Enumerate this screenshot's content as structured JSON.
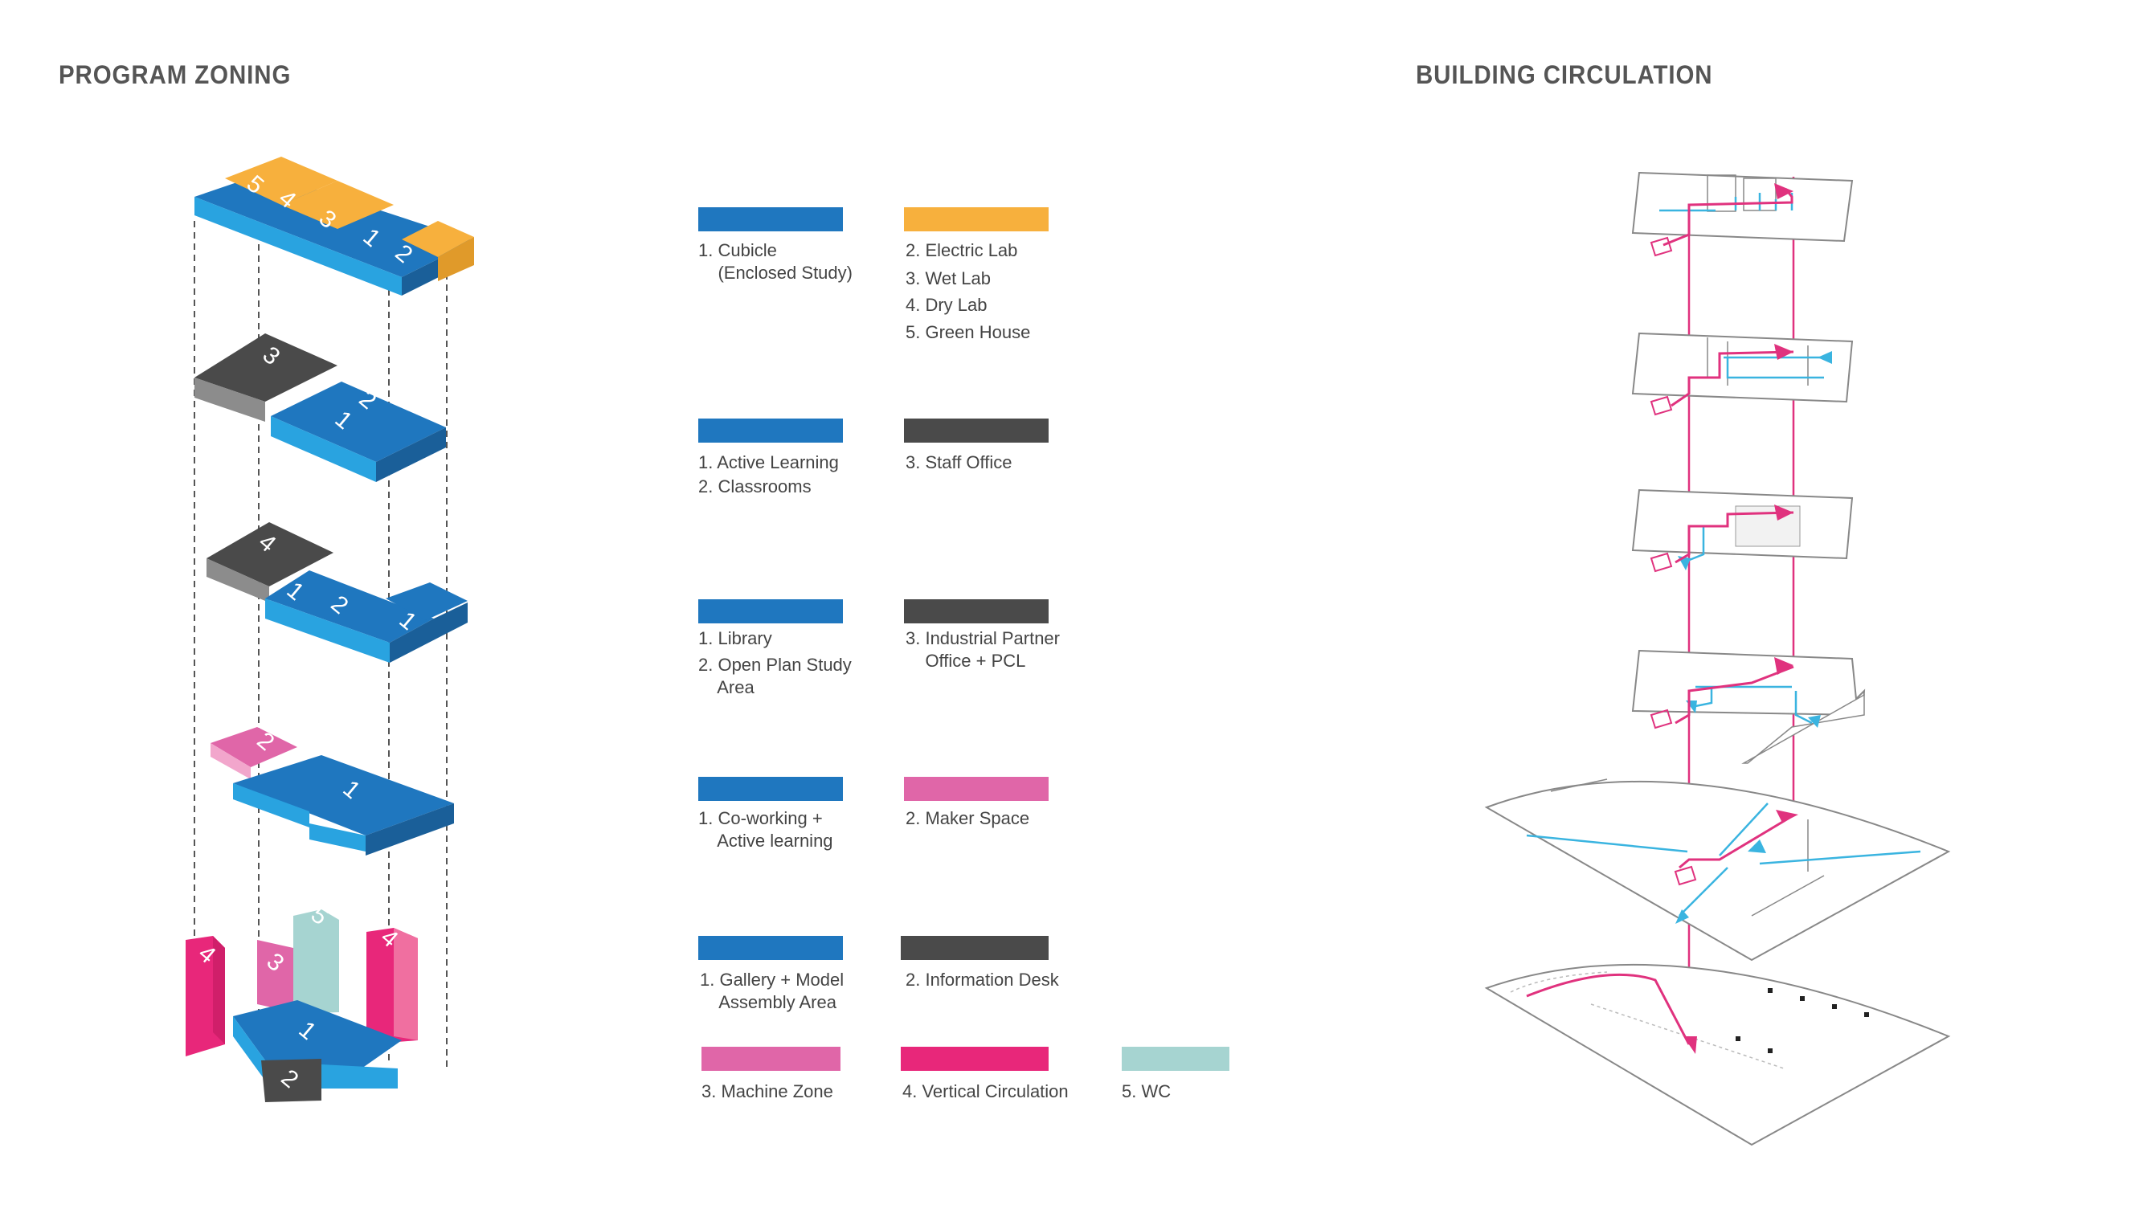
{
  "headings": {
    "program_zoning": "PROGRAM ZONING",
    "building_circulation": "BUILDING CIRCULATION"
  },
  "colors": {
    "blue": "#1f77bf",
    "light_blue": "#29a3e0",
    "orange": "#f7b03d",
    "dark_gray": "#4a4a4a",
    "pink": "#e066a8",
    "hot_pink": "#e8277a",
    "mint": "#a6d4d1",
    "circ_pink": "#e0327e",
    "circ_cyan": "#3ab4e0"
  },
  "legend": {
    "level1": {
      "a": "1. Cubicle\n    (Enclosed Study)",
      "b1": "2. Electric Lab",
      "b2": "3. Wet Lab",
      "b3": "4. Dry Lab",
      "b4": "5. Green House"
    },
    "level2": {
      "a1": "1. Active Learning",
      "a2": "2. Classrooms",
      "b": "3. Staff Office"
    },
    "level3": {
      "a1": "1. Library",
      "a2": "2. Open Plan Study\n    Area",
      "b": "3. Industrial Partner\n    Office + PCL"
    },
    "level4": {
      "a": "1. Co-working +\n    Active learning",
      "b": "2. Maker Space"
    },
    "level5": {
      "a": "1. Gallery + Model\n    Assembly Area",
      "b": "2. Information Desk",
      "c": "3. Machine Zone",
      "d": "4. Vertical Circulation",
      "e": "5. WC"
    }
  },
  "zone_numbers": {
    "top": [
      "5",
      "4",
      "3",
      "1",
      "2"
    ],
    "second": [
      "3",
      "2",
      "1"
    ],
    "third": [
      "4",
      "1",
      "2",
      "1"
    ],
    "fourth": [
      "2",
      "1"
    ],
    "ground": [
      "4",
      "3",
      "5",
      "4",
      "1",
      "2"
    ]
  }
}
